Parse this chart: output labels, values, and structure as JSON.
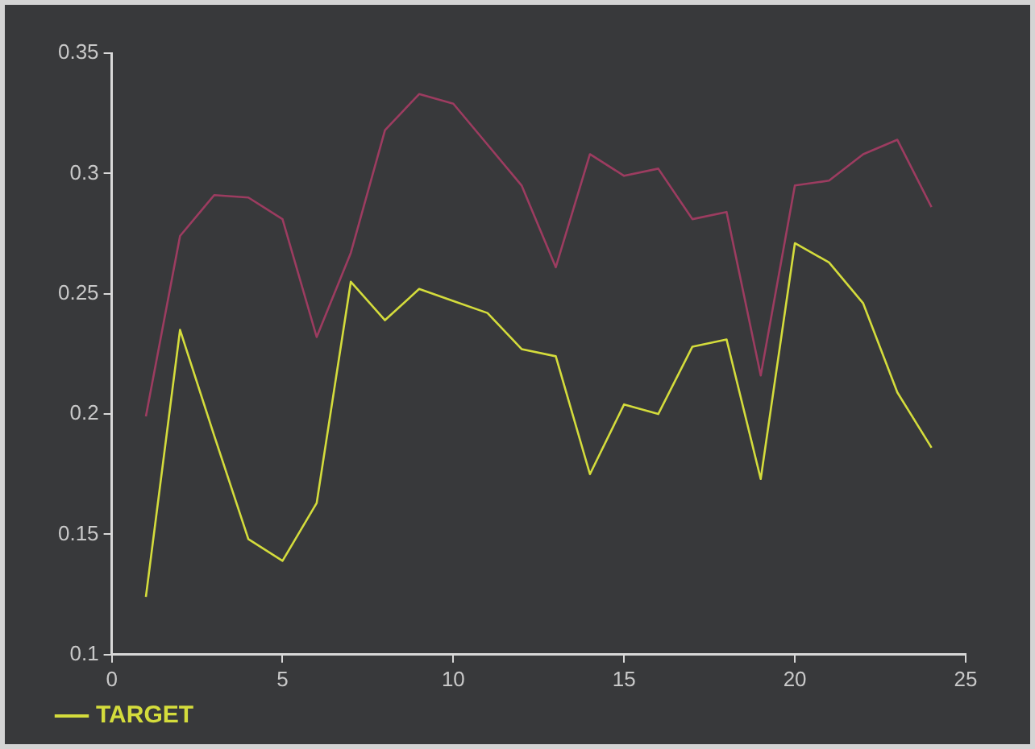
{
  "chart_data": {
    "type": "line",
    "x": [
      1,
      2,
      3,
      4,
      5,
      6,
      7,
      8,
      9,
      10,
      11,
      12,
      13,
      14,
      15,
      16,
      17,
      18,
      19,
      20,
      21,
      22,
      23,
      24
    ],
    "series": [
      {
        "color": "#9c3c60",
        "values": [
          0.199,
          0.274,
          0.291,
          0.29,
          0.281,
          0.232,
          0.267,
          0.318,
          0.333,
          0.329,
          0.312,
          0.295,
          0.261,
          0.308,
          0.299,
          0.302,
          0.281,
          0.284,
          0.216,
          0.295,
          0.297,
          0.308,
          0.314,
          0.286
        ]
      },
      {
        "name": "TARGET",
        "color": "#d4dc3c",
        "values": [
          0.124,
          0.235,
          0.191,
          0.148,
          0.139,
          0.163,
          0.255,
          0.239,
          0.252,
          0.247,
          0.242,
          0.227,
          0.224,
          0.175,
          0.204,
          0.2,
          0.228,
          0.231,
          0.173,
          0.271,
          0.263,
          0.246,
          0.209,
          0.186
        ]
      }
    ],
    "xlim": [
      0,
      25
    ],
    "xticks": [
      0,
      5,
      10,
      15,
      20,
      25
    ],
    "ylim": [
      0.1,
      0.35
    ],
    "yticks": [
      0.1,
      0.15,
      0.2,
      0.25,
      0.3,
      0.35
    ],
    "grid": false,
    "legend": "bottom left",
    "marker": "none",
    "line_style": "solid"
  }
}
